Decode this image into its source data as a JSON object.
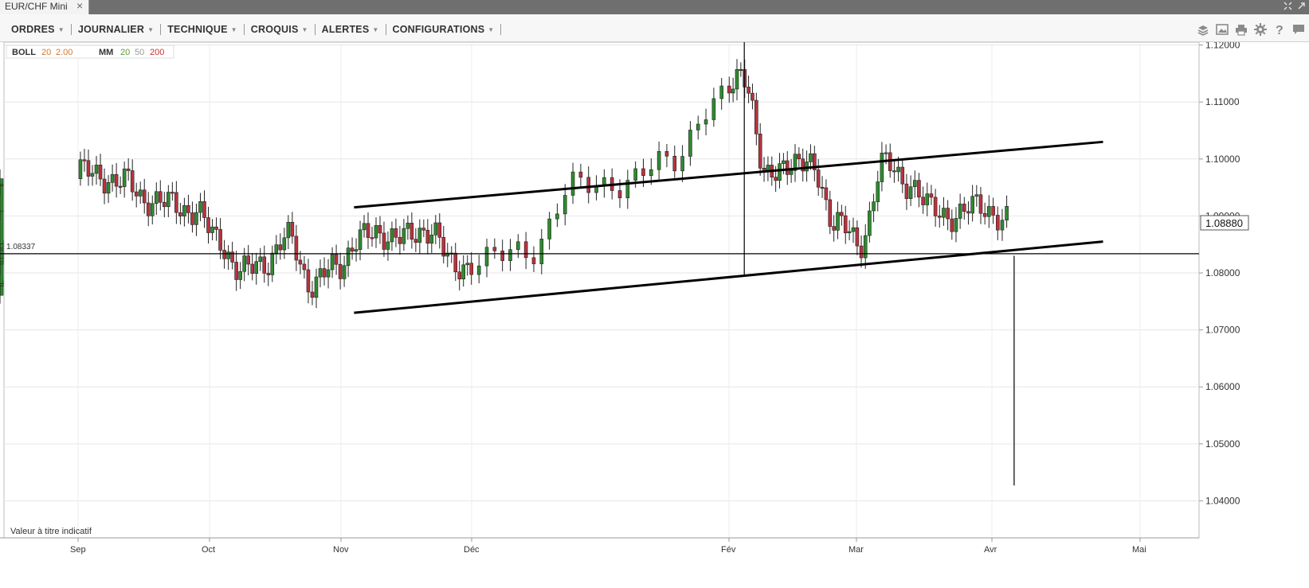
{
  "window": {
    "tab_title": "EUR/CHF Mini",
    "close_icon": "×"
  },
  "menu": [
    {
      "label": "ORDRES"
    },
    {
      "label": "JOURNALIER"
    },
    {
      "label": "TECHNIQUE"
    },
    {
      "label": "CROQUIS"
    },
    {
      "label": "ALERTES"
    },
    {
      "label": "CONFIGURATIONS"
    }
  ],
  "toolbar_icons": [
    "layers-icon",
    "image-icon",
    "print-icon",
    "gear-icon",
    "help-icon",
    "chat-icon"
  ],
  "legend": {
    "boll": {
      "name": "BOLL",
      "p1": "20",
      "p2": "2.00"
    },
    "mm": {
      "name": "MM",
      "p1": "20",
      "p2": "50",
      "p3": "200"
    }
  },
  "colors": {
    "boll": "#d9782b",
    "mm20": "#5a9e2f",
    "mm50": "#9a9a9a",
    "mm200": "#c83232",
    "up": "#2e8b2e",
    "down": "#b8333f"
  },
  "footer_note": "Valeur à titre indicatif",
  "chart_data": {
    "type": "candlestick",
    "instrument": "EUR/CHF Mini",
    "y_ticks": [
      "1.12000",
      "1.11000",
      "1.10000",
      "1.09000",
      "1.08000",
      "1.07000",
      "1.06000",
      "1.05000",
      "1.04000"
    ],
    "ylim": [
      1.0335,
      1.1205
    ],
    "x_labels": [
      "Sep",
      "Oct",
      "Nov",
      "Déc",
      "Fév",
      "Mar",
      "Avr",
      "Mai"
    ],
    "current_price": "1.08880",
    "horizontal_line": {
      "value": 1.08337,
      "label": "1.08337"
    },
    "trendlines": [
      {
        "from": [
          "Nov",
          1.0915
        ],
        "to": [
          "Avr",
          1.103
        ]
      },
      {
        "from": [
          "Nov",
          1.073
        ],
        "to": [
          "Avr",
          1.0855
        ]
      }
    ],
    "spike": {
      "date": "Avr",
      "low": 1.0427,
      "high": 1.083
    },
    "closes_weekly": [
      1.075,
      1.084,
      1.083,
      1.098,
      1.097,
      1.096,
      1.093,
      1.092,
      1.091,
      1.086,
      1.08,
      1.082,
      1.086,
      1.078,
      1.081,
      1.086,
      1.087,
      1.086,
      1.088,
      1.081,
      1.082,
      1.084,
      1.095,
      1.096,
      1.099,
      1.11,
      1.115,
      1.096,
      1.1,
      1.098,
      1.089,
      1.085,
      1.099,
      1.096,
      1.091,
      1.09,
      1.092,
      1.089
    ]
  }
}
